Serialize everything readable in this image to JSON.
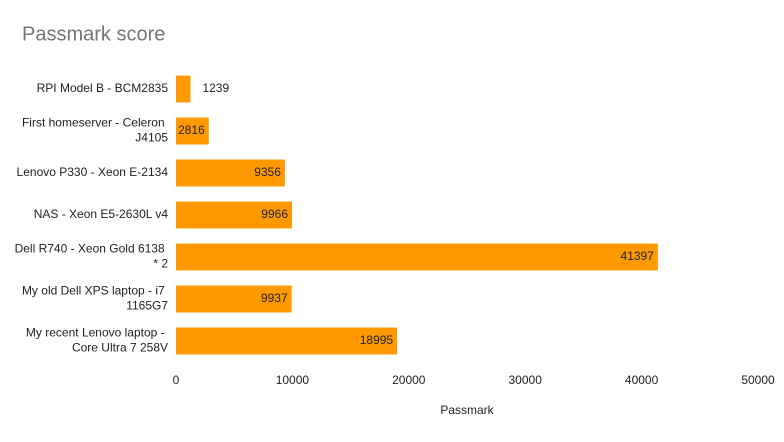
{
  "chart_data": {
    "type": "hbar",
    "title": "Passmark score",
    "x_label": "Passmark",
    "categories": [
      "RPI Model B - BCM2835",
      "First homeserver - Celeron J4105",
      "Lenovo P330 - Xeon E-2134",
      "NAS - Xeon E5-2630L v4",
      "Dell R740 - Xeon Gold 6138 * 2",
      "My old Dell XPS laptop - i7 1165G7",
      "My recent Lenovo laptop - Core Ultra 7 258V"
    ],
    "values": [
      1239,
      2816,
      9356,
      9966,
      41397,
      9937,
      18995
    ],
    "color": "#ff9900",
    "xlim": [
      0,
      50000
    ],
    "xticks": [
      0,
      10000,
      20000,
      30000,
      40000,
      50000
    ],
    "grid": false
  }
}
